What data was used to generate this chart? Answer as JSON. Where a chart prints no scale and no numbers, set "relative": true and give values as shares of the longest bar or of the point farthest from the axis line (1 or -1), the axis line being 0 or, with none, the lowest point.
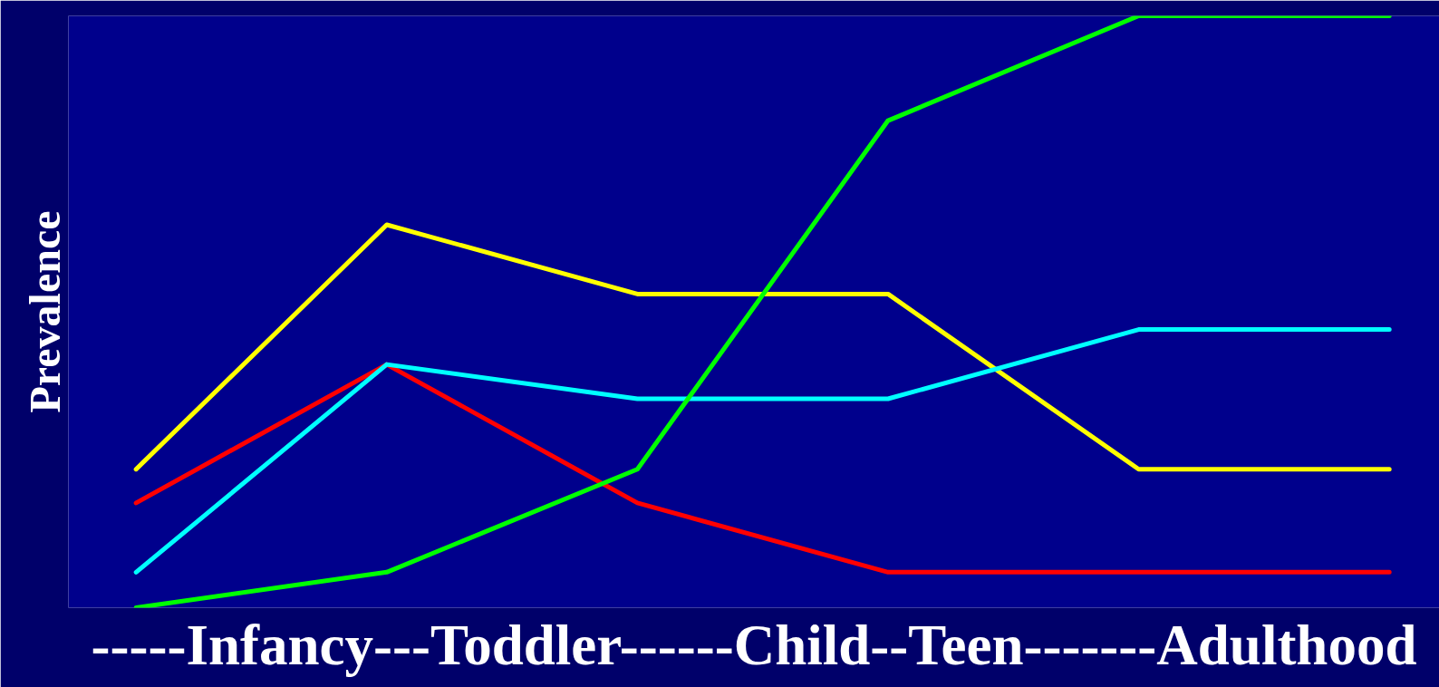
{
  "chart_data": {
    "type": "line",
    "relative": true,
    "xlabel": "-----Infancy---Toddler------Child--Teen-------Adulthood",
    "ylabel": "Prevalence",
    "categories": [
      null,
      null,
      null,
      null,
      null,
      null
    ],
    "grid": false,
    "marker": "none",
    "line_style": "solid",
    "series": [
      {
        "color": "#ffff00",
        "values": [
          0.234,
          0.647,
          0.53,
          0.53,
          0.234,
          0.234
        ]
      },
      {
        "color": "#ff0000",
        "values": [
          0.177,
          0.411,
          0.177,
          0.06,
          0.06,
          0.06
        ]
      },
      {
        "color": "#00ffff",
        "values": [
          0.06,
          0.411,
          0.353,
          0.353,
          0.47,
          0.47
        ]
      },
      {
        "color": "#00ff00",
        "values": [
          0.0,
          0.06,
          0.234,
          0.823,
          1.0,
          1.0
        ]
      }
    ]
  }
}
